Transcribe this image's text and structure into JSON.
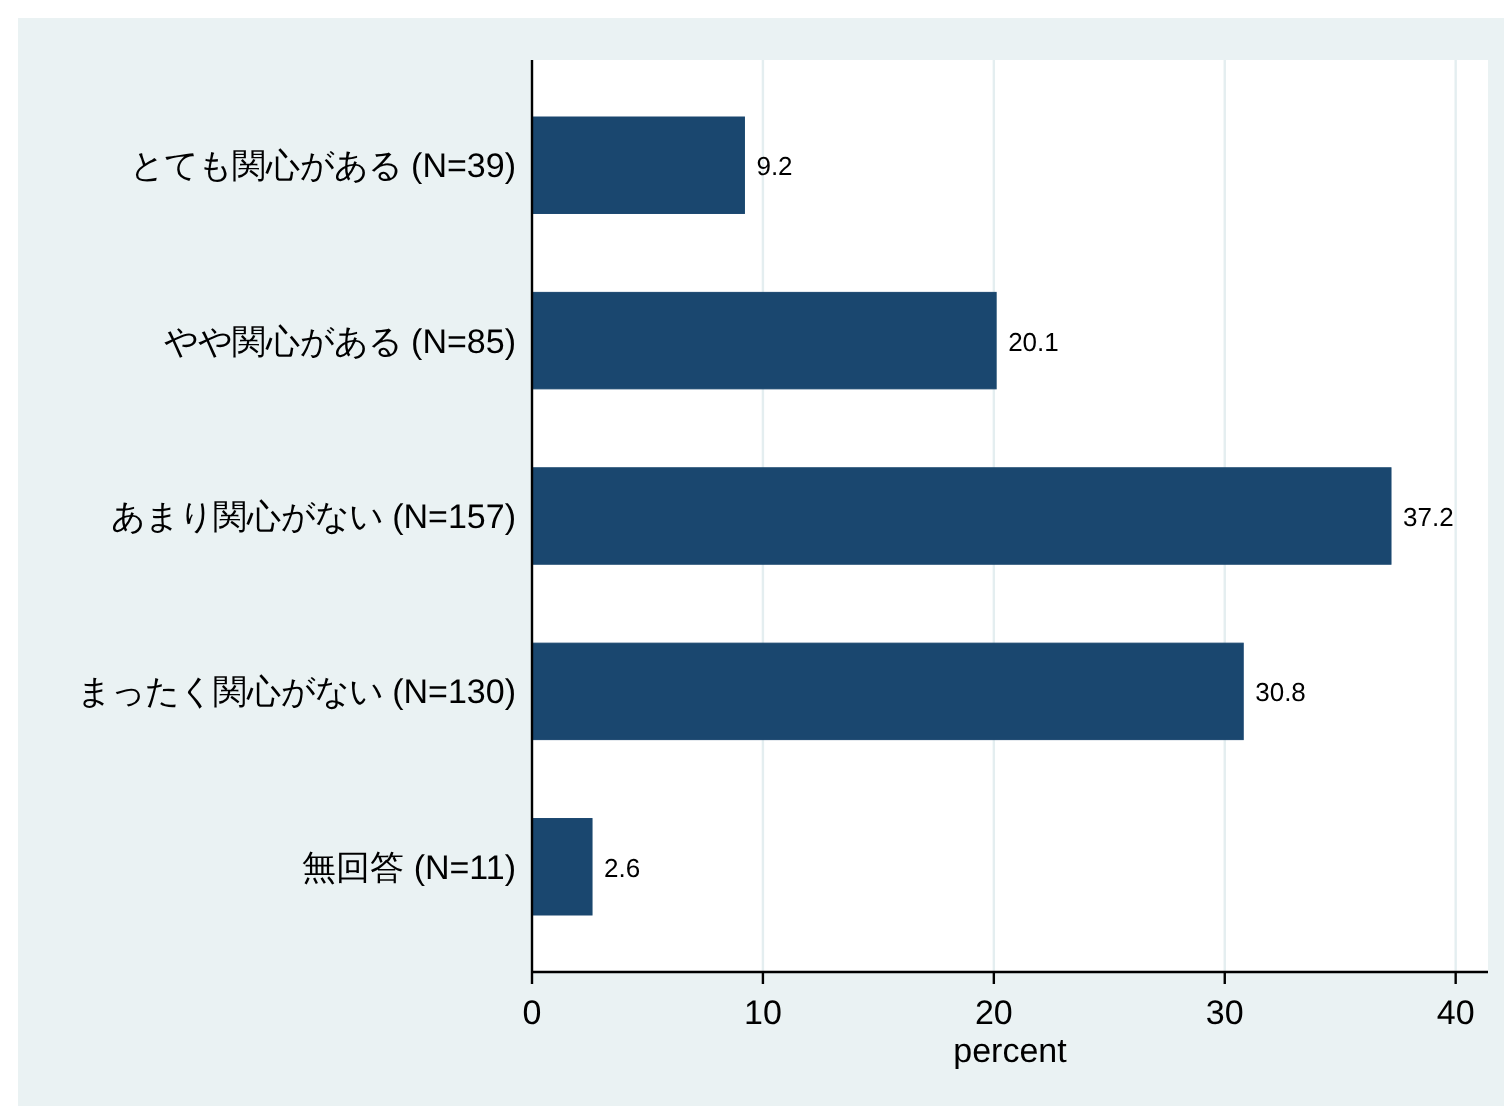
{
  "chart_data": {
    "type": "bar",
    "orientation": "horizontal",
    "categories": [
      "とても関心がある (N=39)",
      "やや関心がある (N=85)",
      "あまり関心がない (N=157)",
      "まったく関心がない (N=130)",
      "無回答 (N=11)"
    ],
    "values": [
      9.2,
      20.1,
      37.2,
      30.8,
      2.6
    ],
    "color": "#1a476f",
    "xlabel": "percent",
    "xlim": [
      0,
      41.4
    ],
    "xticks": [
      0,
      10,
      20,
      30,
      40
    ],
    "grid": "x",
    "data_labels": true
  }
}
